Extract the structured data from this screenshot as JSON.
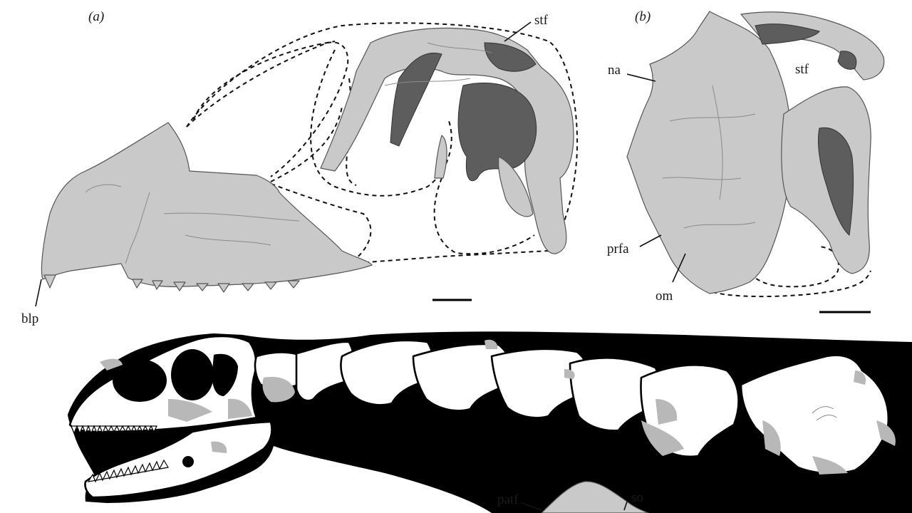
{
  "figure": {
    "panels": {
      "a": {
        "label": "(a)"
      },
      "b": {
        "label": "(b)"
      }
    },
    "annotations": {
      "a_stf": "stf",
      "a_blp": "blp",
      "b_na": "na",
      "b_stf": "stf",
      "b_prfa": "prfa",
      "b_om": "om",
      "c_patf": "patf",
      "c_so": "so"
    }
  },
  "colors": {
    "bone_render": "#c9c9c9",
    "bone_dark": "#5d5d5d",
    "silhouette": "#000000",
    "skeleton_bone": "#ffffff",
    "missing_bone": "#b8b8b8"
  }
}
